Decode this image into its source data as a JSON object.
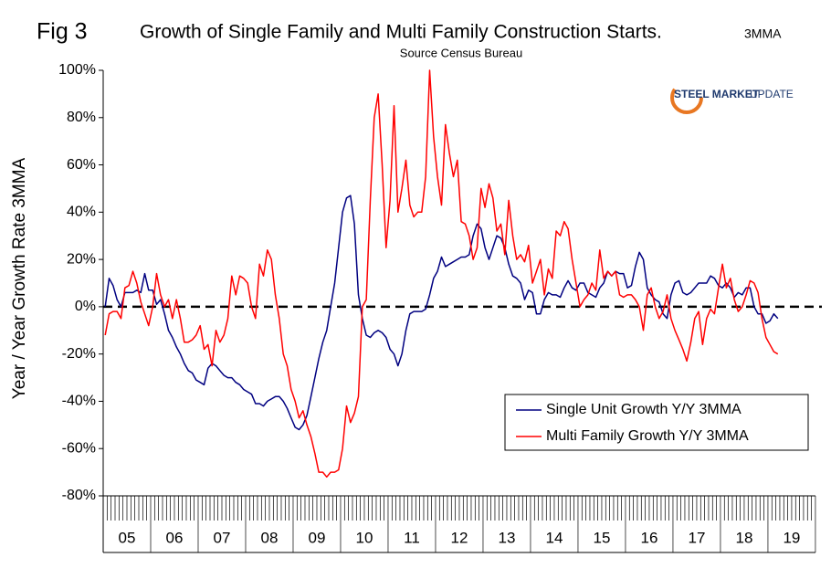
{
  "chart_data": {
    "type": "line",
    "figure_label": "Fig 3",
    "title": "Growth of Single Family and Multi Family Construction Starts.",
    "title_note": "3MMA",
    "subtitle": "Source Census Bureau",
    "logo_text": "STEEL MARKET",
    "logo_text_2": "UPDATE",
    "y_label": "Year / Year Growth Rate 3MMA",
    "ylim": [
      -80,
      100
    ],
    "yticks": [
      {
        "value": 100,
        "label": "100%"
      },
      {
        "value": 80,
        "label": "80%"
      },
      {
        "value": 60,
        "label": "60%"
      },
      {
        "value": 40,
        "label": "40%"
      },
      {
        "value": 20,
        "label": "20%"
      },
      {
        "value": 0,
        "label": "0%"
      },
      {
        "value": -20,
        "label": "-20%"
      },
      {
        "value": -40,
        "label": "-40%"
      },
      {
        "value": -60,
        "label": "-60%"
      },
      {
        "value": -80,
        "label": "-80%"
      }
    ],
    "categories": [
      "05",
      null,
      null,
      null,
      null,
      null,
      null,
      null,
      null,
      null,
      null,
      null,
      "06",
      null,
      null,
      null,
      null,
      null,
      null,
      null,
      null,
      null,
      null,
      null,
      "07",
      null,
      null,
      null,
      null,
      null,
      null,
      null,
      null,
      null,
      null,
      null,
      "08",
      null,
      null,
      null,
      null,
      null,
      null,
      null,
      null,
      null,
      null,
      null,
      "09",
      null,
      null,
      null,
      null,
      null,
      null,
      null,
      null,
      null,
      null,
      null,
      "10",
      null,
      null,
      null,
      null,
      null,
      null,
      null,
      null,
      null,
      null,
      null,
      "11",
      null,
      null,
      null,
      null,
      null,
      null,
      null,
      null,
      null,
      null,
      null,
      "12",
      null,
      null,
      null,
      null,
      null,
      null,
      null,
      null,
      null,
      null,
      null,
      "13",
      null,
      null,
      null,
      null,
      null,
      null,
      null,
      null,
      null,
      null,
      null,
      "14",
      null,
      null,
      null,
      null,
      null,
      null,
      null,
      null,
      null,
      null,
      null,
      "15",
      null,
      null,
      null,
      null,
      null,
      null,
      null,
      null,
      null,
      null,
      null,
      "16",
      null,
      null,
      null,
      null,
      null,
      null,
      null,
      null,
      null,
      null,
      null,
      "17",
      null,
      null,
      null,
      null,
      null,
      null,
      null,
      null,
      null,
      null,
      null,
      "18",
      null,
      null,
      null,
      null,
      null,
      null,
      null,
      null,
      null,
      null,
      null,
      "19",
      null,
      null
    ],
    "series": [
      {
        "name": "Single Unit Growth Y/Y 3MMA",
        "color": "#000080",
        "values": [
          0,
          12,
          9,
          3,
          0,
          6,
          6,
          6,
          7,
          6,
          14,
          7,
          7,
          1,
          3,
          -3,
          -10,
          -13,
          -17,
          -20,
          -24,
          -27,
          -28,
          -31,
          -32,
          -33,
          -26,
          -24,
          -25,
          -27,
          -29,
          -30,
          -30,
          -32,
          -33,
          -35,
          -36,
          -37,
          -41,
          -41,
          -42,
          -40,
          -39,
          -38,
          -38,
          -40,
          -43,
          -47,
          -51,
          -52,
          -50,
          -46,
          -38,
          -30,
          -22,
          -15,
          -10,
          0,
          10,
          25,
          40,
          46,
          47,
          35,
          5,
          -5,
          -12,
          -13,
          -11,
          -10,
          -11,
          -13,
          -18,
          -20,
          -25,
          -20,
          -10,
          -3,
          -2,
          -2,
          -2,
          -1,
          5,
          12,
          15,
          21,
          17,
          18,
          19,
          20,
          21,
          21,
          22,
          30,
          35,
          33,
          25,
          20,
          25,
          30,
          29,
          25,
          18,
          13,
          12,
          10,
          3,
          7,
          6,
          -3,
          -3,
          3,
          6,
          5,
          5,
          4,
          8,
          11,
          8,
          7,
          10,
          10,
          6,
          5,
          4,
          8,
          10,
          15,
          13,
          15,
          14,
          14,
          8,
          9,
          17,
          23,
          20,
          8,
          5,
          3,
          2,
          -3,
          -5,
          5,
          10,
          11,
          6,
          5,
          6,
          8,
          10,
          10,
          10,
          13,
          12,
          9,
          8,
          10,
          8,
          4,
          6,
          5,
          8,
          8,
          0,
          -3,
          -3,
          -7,
          -6,
          -3,
          -5
        ]
      },
      {
        "name": "Multi Family Growth Y/Y 3MMA",
        "color": "#ff0000",
        "values": [
          -12,
          -3,
          -2,
          -2,
          -5,
          8,
          9,
          15,
          10,
          2,
          -3,
          -8,
          0,
          14,
          5,
          0,
          3,
          -5,
          3,
          -5,
          -15,
          -15,
          -14,
          -12,
          -8,
          -18,
          -16,
          -25,
          -10,
          -15,
          -12,
          -5,
          13,
          5,
          13,
          12,
          10,
          0,
          -5,
          18,
          13,
          24,
          20,
          5,
          -5,
          -20,
          -25,
          -35,
          -40,
          -47,
          -44,
          -50,
          -55,
          -62,
          -70,
          -70,
          -72,
          -70,
          -70,
          -69,
          -60,
          -42,
          -49,
          -45,
          -38,
          0,
          3,
          45,
          80,
          90,
          60,
          25,
          45,
          85,
          40,
          50,
          62,
          43,
          38,
          40,
          40,
          55,
          100,
          72,
          55,
          43,
          77,
          65,
          55,
          62,
          36,
          35,
          30,
          20,
          25,
          50,
          42,
          52,
          46,
          32,
          35,
          22,
          45,
          30,
          20,
          22,
          19,
          26,
          10,
          15,
          20,
          5,
          16,
          12,
          32,
          30,
          36,
          33,
          20,
          10,
          0,
          3,
          5,
          10,
          7,
          24,
          12,
          15,
          13,
          15,
          5,
          4,
          5,
          5,
          3,
          0,
          -10,
          5,
          8,
          0,
          -5,
          -2,
          5,
          -5,
          -10,
          -14,
          -18,
          -23,
          -15,
          -5,
          -2,
          -16,
          -5,
          -1,
          -3,
          8,
          18,
          8,
          12,
          3,
          -2,
          0,
          5,
          11,
          10,
          6,
          -5,
          -13,
          -16,
          -19,
          -20
        ]
      }
    ]
  }
}
